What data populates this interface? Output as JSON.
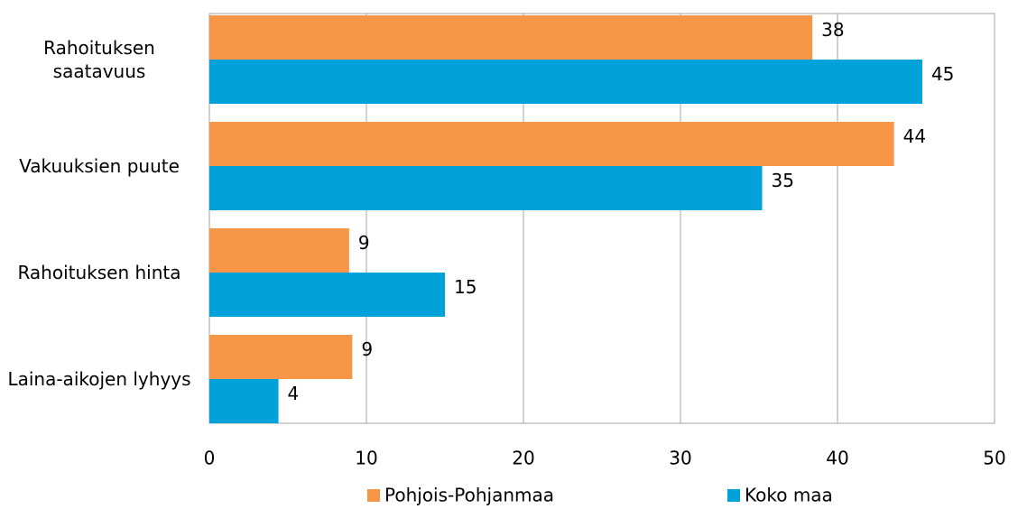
{
  "chart_data": {
    "type": "bar",
    "orientation": "horizontal",
    "categories": [
      "Rahoituksen saatavuus",
      "Vakuuksien puute",
      "Rahoituksen hinta",
      "Laina-aikojen lyhyys"
    ],
    "series": [
      {
        "name": "Pohjois-Pohjanmaa",
        "color": "#f79646",
        "values": [
          38.4,
          43.6,
          8.9,
          9.1
        ],
        "value_labels": [
          "38",
          "44",
          "9",
          "9"
        ]
      },
      {
        "name": "Koko maa",
        "color": "#00a2d9",
        "values": [
          45.4,
          35.2,
          15,
          4.4
        ],
        "value_labels": [
          "45",
          "35",
          "15",
          "4"
        ]
      }
    ],
    "xlim": [
      0,
      50
    ],
    "xticks": [
      0,
      10,
      20,
      30,
      40,
      50
    ],
    "grid": true,
    "legend": "bottom"
  }
}
